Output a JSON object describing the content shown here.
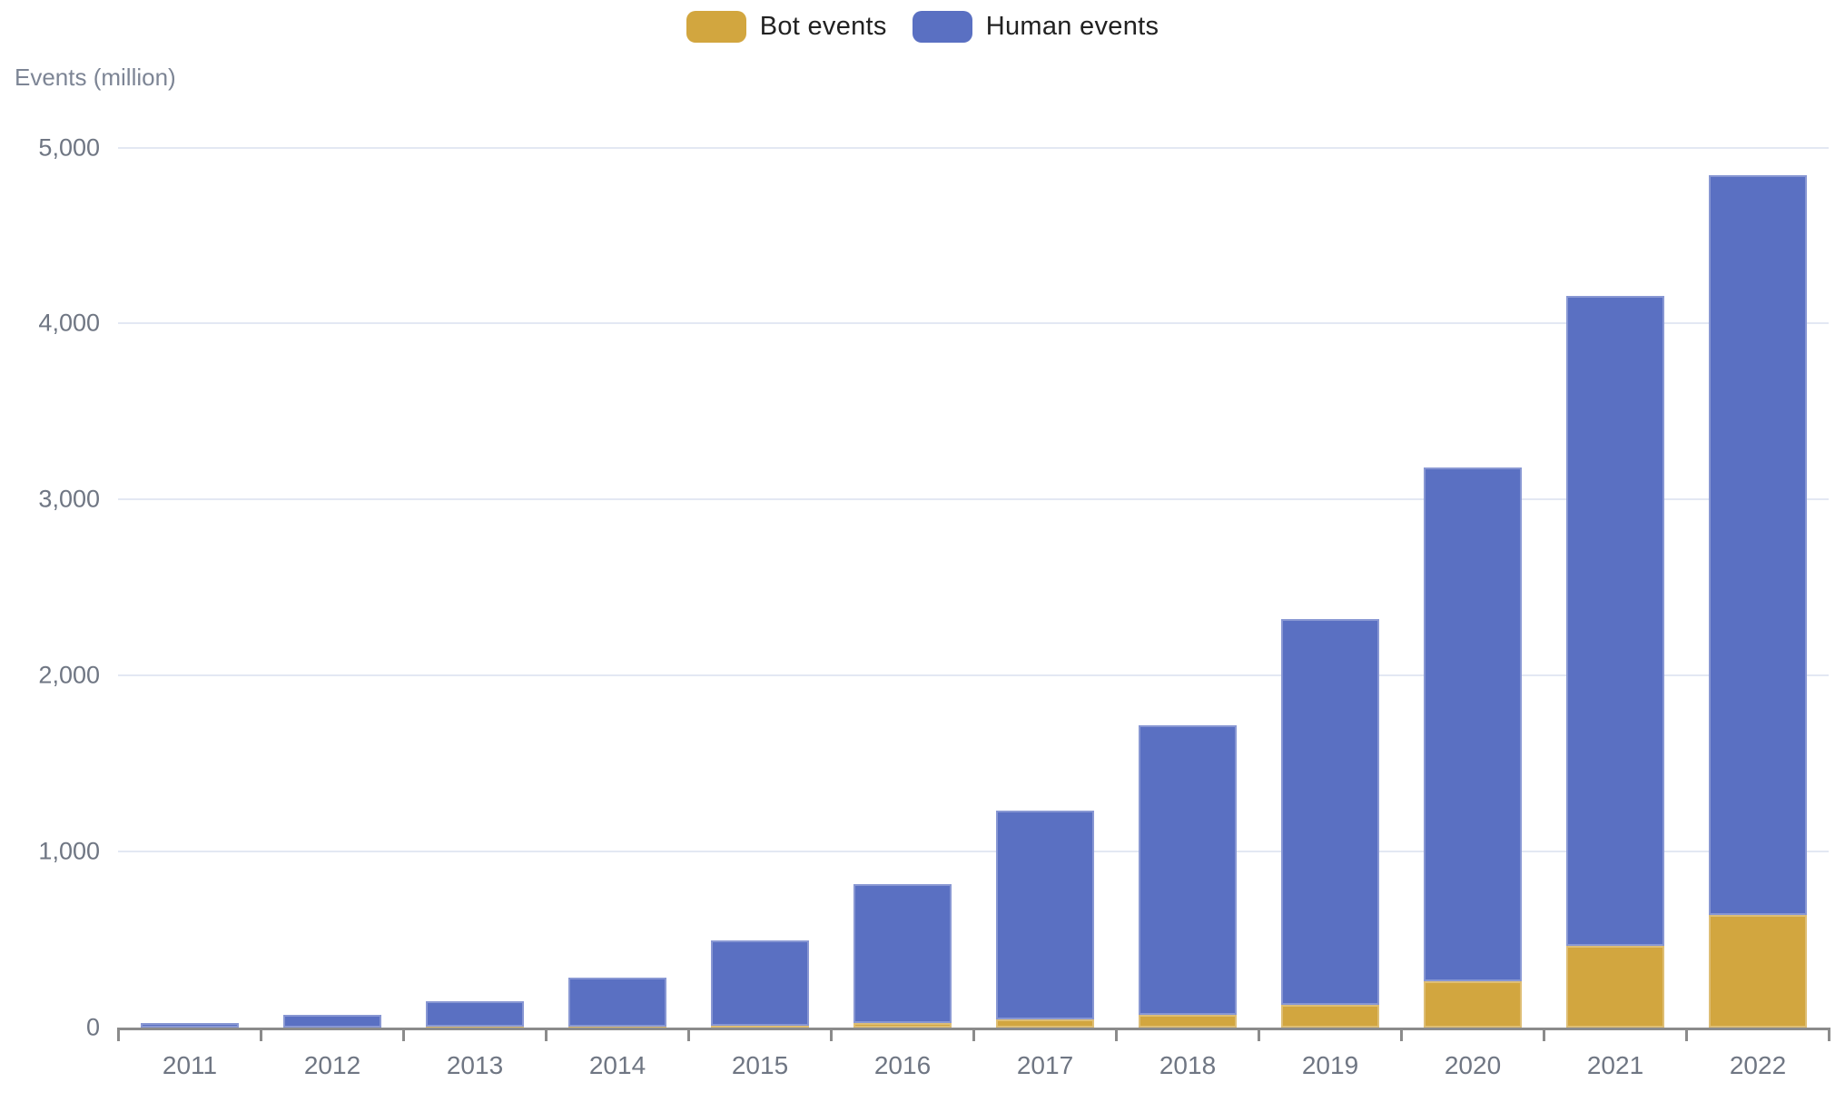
{
  "legend": {
    "items": [
      {
        "label": "Bot events",
        "color": "#d2a63f"
      },
      {
        "label": "Human events",
        "color": "#5a70c2"
      }
    ]
  },
  "axis_title": "Events (million)",
  "chart_data": {
    "type": "bar",
    "stacked": true,
    "title": "",
    "xlabel": "",
    "ylabel": "Events (million)",
    "categories": [
      "2011",
      "2012",
      "2013",
      "2014",
      "2015",
      "2016",
      "2017",
      "2018",
      "2019",
      "2020",
      "2021",
      "2022"
    ],
    "series": [
      {
        "name": "Bot events",
        "color": "#d2a63f",
        "values": [
          1,
          2,
          3,
          5,
          8,
          27,
          48,
          74,
          130,
          265,
          465,
          640
        ]
      },
      {
        "name": "Human events",
        "color": "#5a70c2",
        "values": [
          27,
          70,
          147,
          280,
          487,
          788,
          1183,
          1645,
          2190,
          2915,
          3690,
          4205
        ]
      }
    ],
    "stacked_totals": [
      28,
      72,
      150,
      285,
      495,
      815,
      1231,
      1719,
      2320,
      3180,
      4155,
      4845
    ],
    "ylim": [
      0,
      5000
    ],
    "yticks": [
      0,
      1000,
      2000,
      3000,
      4000,
      5000
    ],
    "ytick_labels": [
      "0",
      "1,000",
      "2,000",
      "3,000",
      "4,000",
      "5,000"
    ],
    "grid": true,
    "legend_position": "top-center",
    "colors": {
      "gridline": "#e3e8f3",
      "axis_line": "#8b8b8b",
      "tick_label": "#6f7683",
      "legend_text": "#212121",
      "axis_title_text": "#7d8595"
    }
  }
}
